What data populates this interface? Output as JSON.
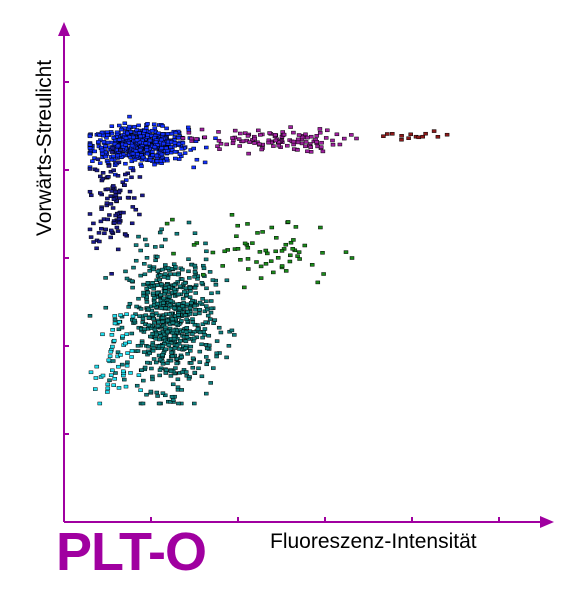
{
  "chart_data": {
    "type": "scatter",
    "title": "PLT-O",
    "xlabel": "Fluoreszenz-Intensität",
    "ylabel": "Vorwärts-Streulicht",
    "xlim": [
      0,
      5.5
    ],
    "ylim": [
      0,
      5.5
    ],
    "x_ticks": [
      1,
      2,
      3,
      4,
      5
    ],
    "y_ticks": [
      1,
      2,
      3,
      4,
      5
    ],
    "grid": false,
    "legend": "none",
    "axis_color": "#a000a0",
    "clusters": [
      {
        "color": "#1030ff",
        "center": [
          0.85,
          4.3
        ],
        "spread": [
          0.5,
          0.18
        ],
        "count": 620
      },
      {
        "color": "#1a1a8c",
        "center": [
          0.55,
          3.7
        ],
        "spread": [
          0.25,
          0.55
        ],
        "count": 110
      },
      {
        "color": "#a020a0",
        "center": [
          2.3,
          4.35
        ],
        "spread": [
          0.8,
          0.12
        ],
        "count": 120
      },
      {
        "color": "#8b1a1a",
        "center": [
          4.0,
          4.4
        ],
        "spread": [
          0.5,
          0.05
        ],
        "count": 14
      },
      {
        "color": "#108080",
        "center": [
          1.2,
          2.3
        ],
        "spread": [
          0.45,
          0.7
        ],
        "count": 650
      },
      {
        "color": "#20e0f0",
        "center": [
          0.55,
          1.8
        ],
        "spread": [
          0.2,
          0.5
        ],
        "count": 50
      },
      {
        "color": "#1a8a1a",
        "center": [
          2.3,
          3.1
        ],
        "spread": [
          0.8,
          0.35
        ],
        "count": 65
      }
    ]
  }
}
